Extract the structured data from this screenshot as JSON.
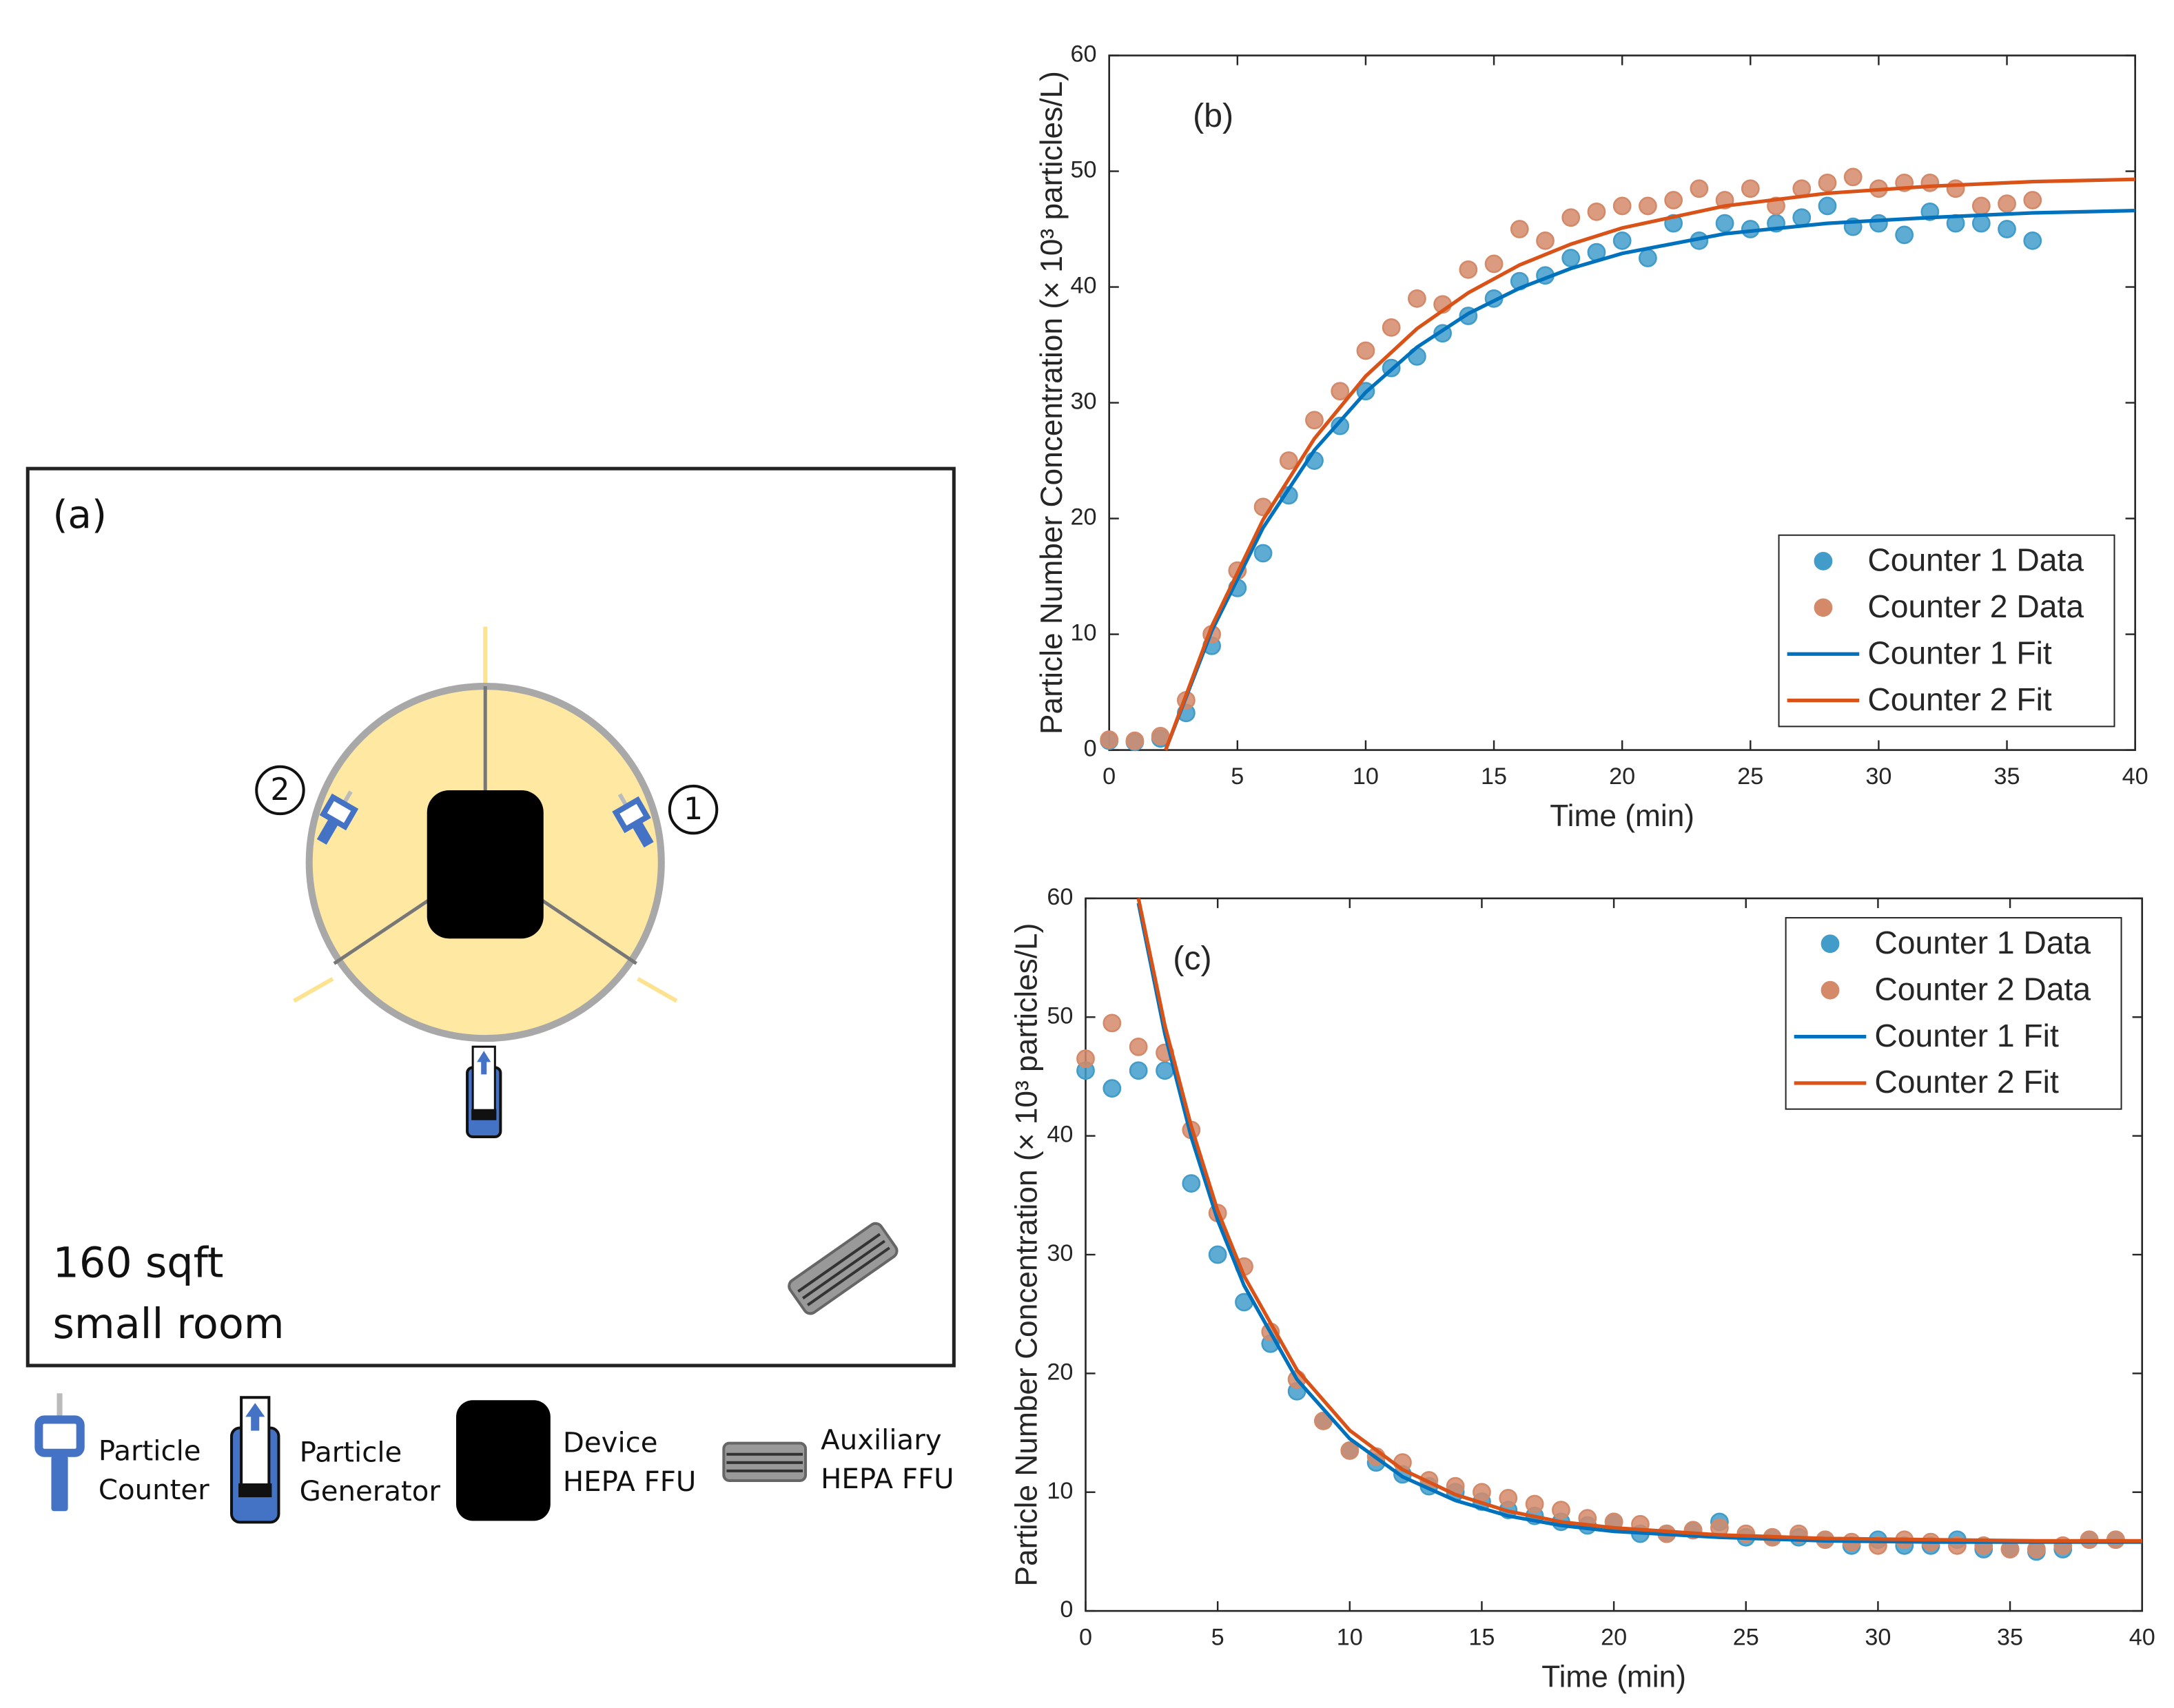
{
  "diagram": {
    "panel_label": "(a)",
    "room_size": "160 sqft",
    "room_type": "small room",
    "counter_labels": [
      "1",
      "2"
    ],
    "legend": [
      {
        "line1": "Particle",
        "line2": "Counter"
      },
      {
        "line1": "Particle",
        "line2": "Generator"
      },
      {
        "line1": "Device",
        "line2": "HEPA FFU"
      },
      {
        "line1": "Auxiliary",
        "line2": "HEPA FFU"
      }
    ]
  },
  "chart_data": [
    {
      "type": "scatter",
      "label": "(b)",
      "xlabel": "Time (min)",
      "ylabel": "Particle Number Concentration (× 10³ particles/L)",
      "xlim": [
        0,
        40
      ],
      "ylim": [
        0,
        60
      ],
      "xticks": [
        0,
        5,
        10,
        15,
        20,
        25,
        30,
        35,
        40
      ],
      "yticks": [
        0,
        10,
        20,
        30,
        40,
        50,
        60
      ],
      "legend": "lower right",
      "series": [
        {
          "name": "Counter 1 Data",
          "mode": "markers",
          "color": "#4db8ee",
          "x": [
            0,
            1,
            2,
            3,
            4,
            5,
            6,
            7,
            8,
            9,
            10,
            11,
            12,
            13,
            14,
            15,
            16,
            17,
            18,
            19,
            20,
            21,
            22,
            23,
            24,
            25,
            26,
            27,
            28,
            29,
            30,
            31,
            32,
            33,
            34,
            35,
            36
          ],
          "values": [
            0.8,
            0.7,
            1.0,
            3.2,
            9,
            14,
            17,
            22,
            25,
            28,
            31,
            33,
            34,
            36,
            37.5,
            39,
            40.5,
            41,
            42.5,
            43,
            44,
            42.5,
            45.5,
            44,
            45.5,
            45,
            45.5,
            46,
            47,
            45.2,
            45.5,
            44.5,
            46.5,
            45.5,
            45.5,
            45,
            44
          ]
        },
        {
          "name": "Counter 2 Data",
          "mode": "markers",
          "color": "#f9a27c",
          "x": [
            0,
            1,
            2,
            3,
            4,
            5,
            6,
            7,
            8,
            9,
            10,
            11,
            12,
            13,
            14,
            15,
            16,
            17,
            18,
            19,
            20,
            21,
            22,
            23,
            24,
            25,
            26,
            27,
            28,
            29,
            30,
            31,
            32,
            33,
            34,
            35,
            36
          ],
          "values": [
            0.9,
            0.8,
            1.2,
            4.3,
            10,
            15.5,
            21,
            25,
            28.5,
            31,
            34.5,
            36.5,
            39,
            38.5,
            41.5,
            42,
            45,
            44,
            46,
            46.5,
            47,
            47,
            47.5,
            48.5,
            47.5,
            48.5,
            47,
            48.5,
            49,
            49.5,
            48.5,
            49,
            49,
            48.5,
            47,
            47.2,
            47.5
          ]
        },
        {
          "name": "Counter 1 Fit",
          "mode": "line",
          "color": "#0072bd",
          "x": [
            2.2,
            4,
            6,
            8,
            10,
            12,
            14,
            16,
            18,
            20,
            24,
            28,
            32,
            36,
            40
          ],
          "values": [
            0,
            10.3,
            19.2,
            25.9,
            30.9,
            34.8,
            37.7,
            39.9,
            41.6,
            42.9,
            44.6,
            45.5,
            46.0,
            46.4,
            46.6
          ]
        },
        {
          "name": "Counter 2 Fit",
          "mode": "line",
          "color": "#d95319",
          "x": [
            2.2,
            4,
            6,
            8,
            10,
            12,
            14,
            16,
            18,
            20,
            24,
            28,
            32,
            36,
            40
          ],
          "values": [
            0,
            10.7,
            19.9,
            26.9,
            32.3,
            36.4,
            39.5,
            41.9,
            43.7,
            45.1,
            47.0,
            48.1,
            48.7,
            49.1,
            49.3
          ]
        }
      ]
    },
    {
      "type": "scatter",
      "label": "(c)",
      "xlabel": "Time (min)",
      "ylabel": "Particle Number Concentration (× 10³ particles/L)",
      "xlim": [
        0,
        40
      ],
      "ylim": [
        0,
        60
      ],
      "xticks": [
        0,
        5,
        10,
        15,
        20,
        25,
        30,
        35,
        40
      ],
      "yticks": [
        0,
        10,
        20,
        30,
        40,
        50,
        60
      ],
      "legend": "upper right",
      "series": [
        {
          "name": "Counter 1 Data",
          "mode": "markers",
          "color": "#4db8ee",
          "x": [
            0,
            1,
            2,
            3,
            4,
            5,
            6,
            7,
            8,
            9,
            10,
            11,
            12,
            13,
            14,
            15,
            16,
            17,
            18,
            19,
            20,
            21,
            22,
            23,
            24,
            25,
            26,
            27,
            28,
            29,
            30,
            31,
            32,
            33,
            34,
            35,
            36,
            37,
            38,
            39
          ],
          "values": [
            45.5,
            44,
            45.5,
            45.5,
            36,
            30,
            26,
            22.5,
            18.5,
            16,
            13.5,
            12.5,
            11.5,
            10.5,
            10,
            9.2,
            8.5,
            8,
            7.5,
            7.2,
            7.5,
            6.5,
            6.5,
            6.8,
            7.5,
            6.2,
            6.2,
            6.2,
            6,
            5.5,
            6,
            5.5,
            5.5,
            6,
            5.2,
            5.2,
            5,
            5.2,
            6,
            6
          ]
        },
        {
          "name": "Counter 2 Data",
          "mode": "markers",
          "color": "#f9a27c",
          "x": [
            0,
            1,
            2,
            3,
            4,
            5,
            6,
            7,
            8,
            9,
            10,
            11,
            12,
            13,
            14,
            15,
            16,
            17,
            18,
            19,
            20,
            21,
            22,
            23,
            24,
            25,
            26,
            27,
            28,
            29,
            30,
            31,
            32,
            33,
            34,
            35,
            36,
            37,
            38,
            39
          ],
          "values": [
            46.5,
            49.5,
            47.5,
            47,
            40.5,
            33.5,
            29,
            23.5,
            19.5,
            16,
            13.5,
            13,
            12.5,
            11,
            10.5,
            10,
            9.5,
            9,
            8.5,
            7.8,
            7.5,
            7.3,
            6.5,
            6.8,
            7,
            6.5,
            6.2,
            6.5,
            6,
            5.8,
            5.5,
            6,
            5.8,
            5.5,
            5.5,
            5.2,
            5.2,
            5.5,
            6,
            6
          ]
        },
        {
          "name": "Counter 1 Fit",
          "mode": "line",
          "color": "#0072bd",
          "x": [
            2,
            3,
            4,
            5,
            6,
            8,
            10,
            12,
            14,
            16,
            18,
            20,
            24,
            28,
            32,
            36,
            40
          ],
          "values": [
            59.6,
            48.6,
            39.9,
            32.9,
            27.4,
            19.5,
            14.5,
            11.3,
            9.3,
            8.0,
            7.2,
            6.7,
            6.2,
            5.9,
            5.8,
            5.8,
            5.8
          ]
        },
        {
          "name": "Counter 2 Fit",
          "mode": "line",
          "color": "#d95319",
          "x": [
            2,
            3,
            4,
            5,
            6,
            8,
            10,
            12,
            14,
            16,
            18,
            20,
            24,
            28,
            32,
            36,
            40
          ],
          "values": [
            60,
            49.3,
            40.8,
            33.7,
            28.2,
            20.3,
            15.2,
            11.9,
            9.8,
            8.4,
            7.5,
            7.0,
            6.4,
            6.1,
            6.0,
            5.9,
            5.9
          ]
        }
      ]
    }
  ]
}
